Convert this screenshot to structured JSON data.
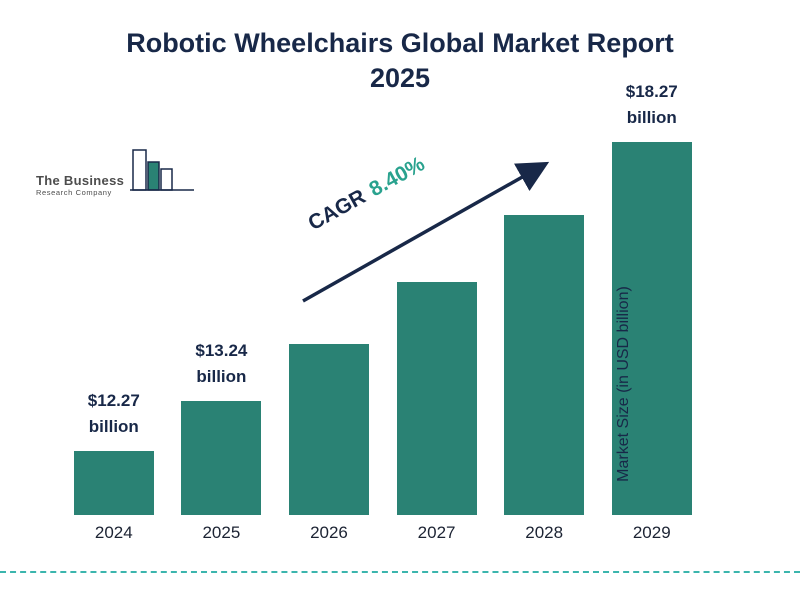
{
  "title": {
    "line1": "Robotic Wheelchairs Global Market Report",
    "line2": "2025"
  },
  "logo": {
    "line1": "The Business",
    "line2": "Research Company"
  },
  "cagr": {
    "prefix": "CAGR",
    "value": "8.40%"
  },
  "ylabel": "Market Size (in USD billion)",
  "colors": {
    "bar": "#2a8274",
    "navy": "#182848",
    "cagr_green": "#29a28e",
    "dashed_line": "#3bb5ad"
  },
  "chart_data": {
    "type": "bar",
    "title": "Robotic Wheelchairs Global Market Report 2025",
    "categories": [
      "2024",
      "2025",
      "2026",
      "2027",
      "2028",
      "2029"
    ],
    "values": [
      12.27,
      13.24,
      14.35,
      15.56,
      16.86,
      18.27
    ],
    "value_labels": [
      {
        "index": 0,
        "text": "$12.27 billion"
      },
      {
        "index": 1,
        "text": "$13.24 billion"
      },
      {
        "index": 5,
        "text": "$18.27 billion"
      }
    ],
    "cagr": "8.40%",
    "xlabel": "",
    "ylabel": "Market Size (in USD billion)",
    "ylim": [
      0,
      20
    ],
    "grid": false,
    "legend": "none",
    "bar_color": "#2a8274"
  }
}
